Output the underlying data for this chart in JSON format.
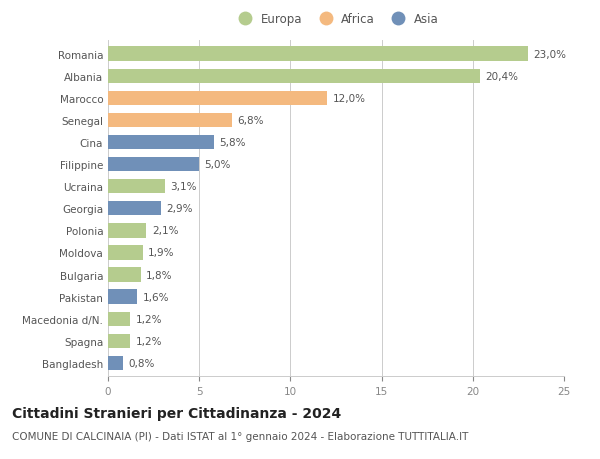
{
  "categories": [
    "Romania",
    "Albania",
    "Marocco",
    "Senegal",
    "Cina",
    "Filippine",
    "Ucraina",
    "Georgia",
    "Polonia",
    "Moldova",
    "Bulgaria",
    "Pakistan",
    "Macedonia d/N.",
    "Spagna",
    "Bangladesh"
  ],
  "values": [
    23.0,
    20.4,
    12.0,
    6.8,
    5.8,
    5.0,
    3.1,
    2.9,
    2.1,
    1.9,
    1.8,
    1.6,
    1.2,
    1.2,
    0.8
  ],
  "labels": [
    "23,0%",
    "20,4%",
    "12,0%",
    "6,8%",
    "5,8%",
    "5,0%",
    "3,1%",
    "2,9%",
    "2,1%",
    "1,9%",
    "1,8%",
    "1,6%",
    "1,2%",
    "1,2%",
    "0,8%"
  ],
  "continents": [
    "Europa",
    "Europa",
    "Africa",
    "Africa",
    "Asia",
    "Asia",
    "Europa",
    "Asia",
    "Europa",
    "Europa",
    "Europa",
    "Asia",
    "Europa",
    "Europa",
    "Asia"
  ],
  "colors": {
    "Europa": "#b5cc8e",
    "Africa": "#f4b97f",
    "Asia": "#7090b8"
  },
  "xlim": [
    0,
    25
  ],
  "xticks": [
    0,
    5,
    10,
    15,
    20,
    25
  ],
  "title": "Cittadini Stranieri per Cittadinanza - 2024",
  "subtitle": "COMUNE DI CALCINAIA (PI) - Dati ISTAT al 1° gennaio 2024 - Elaborazione TUTTITALIA.IT",
  "background_color": "#ffffff",
  "grid_color": "#cccccc",
  "bar_height": 0.65,
  "title_fontsize": 10,
  "subtitle_fontsize": 7.5,
  "label_fontsize": 7.5,
  "tick_fontsize": 7.5,
  "legend_fontsize": 8.5
}
